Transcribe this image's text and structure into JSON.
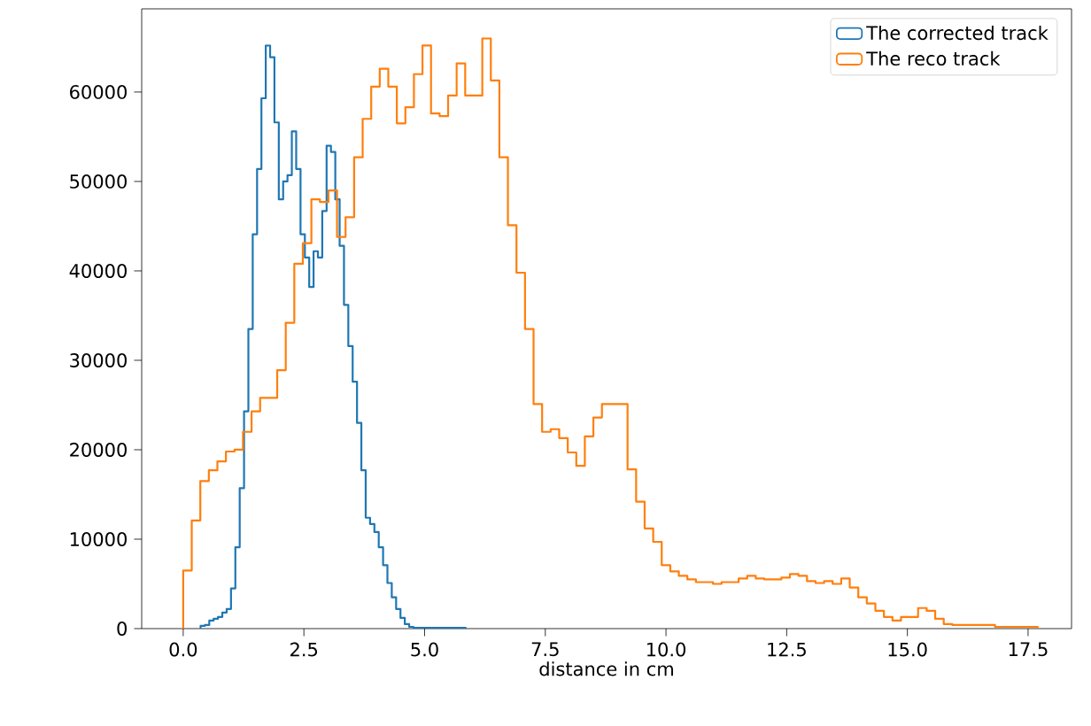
{
  "chart_data": {
    "type": "step",
    "xlabel": "distance in cm",
    "legend": "top right",
    "xlim": [
      -0.86,
      18.4
    ],
    "ylim": [
      0,
      69300
    ],
    "xticks": [
      {
        "value": 0,
        "label": "0.0"
      },
      {
        "value": 2.5,
        "label": "2.5"
      },
      {
        "value": 5,
        "label": "5.0"
      },
      {
        "value": 7.5,
        "label": "7.5"
      },
      {
        "value": 10,
        "label": "10.0"
      },
      {
        "value": 12.5,
        "label": "12.5"
      },
      {
        "value": 15,
        "label": "15.0"
      },
      {
        "value": 17.5,
        "label": "17.5"
      }
    ],
    "yticks": [
      0,
      10000,
      20000,
      30000,
      40000,
      50000,
      60000
    ],
    "series": [
      {
        "name": "The corrected track",
        "color": "#1f77b4",
        "x": [
          0.36,
          0.36,
          0.45,
          0.54,
          0.63,
          0.72,
          0.81,
          0.9,
          0.99,
          1.08,
          1.17,
          1.26,
          1.35,
          1.44,
          1.53,
          1.62,
          1.71,
          1.8,
          1.89,
          1.98,
          2.07,
          2.16,
          2.25,
          2.34,
          2.43,
          2.52,
          2.61,
          2.7,
          2.79,
          2.88,
          2.97,
          3.06,
          3.15,
          3.24,
          3.33,
          3.42,
          3.51,
          3.6,
          3.69,
          3.78,
          3.87,
          3.96,
          4.05,
          4.14,
          4.23,
          4.32,
          4.41,
          4.5,
          4.59,
          4.68,
          4.77,
          4.86,
          4.95,
          5.04,
          5.13,
          5.22,
          5.31,
          5.4,
          5.49,
          5.58,
          5.67,
          5.76,
          5.85
        ],
        "values": [
          0,
          300,
          400,
          900,
          1100,
          1300,
          1800,
          2200,
          4500,
          9100,
          15700,
          24300,
          33500,
          44100,
          51400,
          59300,
          65200,
          63900,
          56600,
          48000,
          50000,
          50700,
          55600,
          51400,
          44100,
          41500,
          38200,
          42200,
          41500,
          46700,
          54000,
          53300,
          48000,
          42800,
          36200,
          31600,
          27600,
          23000,
          17700,
          12400,
          11700,
          10800,
          9100,
          7100,
          5100,
          3500,
          2200,
          1200,
          500,
          200,
          100,
          100,
          100,
          100,
          100,
          100,
          100,
          100,
          100,
          100,
          100,
          100,
          0
        ]
      },
      {
        "name": "The reco track",
        "color": "#ff7f0e",
        "x": [
          0,
          0,
          0.177,
          0.354,
          0.531,
          0.708,
          0.885,
          1.062,
          1.239,
          1.416,
          1.593,
          1.77,
          1.947,
          2.124,
          2.301,
          2.478,
          2.655,
          2.832,
          3.009,
          3.186,
          3.363,
          3.54,
          3.717,
          3.894,
          4.071,
          4.248,
          4.425,
          4.602,
          4.779,
          4.956,
          5.133,
          5.31,
          5.487,
          5.664,
          5.841,
          6.018,
          6.195,
          6.372,
          6.549,
          6.726,
          6.903,
          7.08,
          7.257,
          7.434,
          7.611,
          7.788,
          7.965,
          8.142,
          8.319,
          8.496,
          8.673,
          8.85,
          9.027,
          9.204,
          9.381,
          9.558,
          9.735,
          9.912,
          10.089,
          10.266,
          10.443,
          10.62,
          10.797,
          10.974,
          11.151,
          11.328,
          11.505,
          11.682,
          11.859,
          12.036,
          12.213,
          12.39,
          12.567,
          12.744,
          12.921,
          13.098,
          13.275,
          13.452,
          13.629,
          13.806,
          13.983,
          14.16,
          14.337,
          14.514,
          14.691,
          14.868,
          15.045,
          15.222,
          15.399,
          15.576,
          15.753,
          15.93,
          16.107,
          16.284,
          16.461,
          16.638,
          16.815,
          16.992,
          17.169,
          17.346,
          17.523,
          17.7
        ],
        "values": [
          0,
          6500,
          12100,
          16500,
          17700,
          18700,
          19800,
          20000,
          22000,
          24300,
          25800,
          25800,
          28900,
          34200,
          40800,
          43100,
          48000,
          47700,
          49000,
          43800,
          46000,
          52700,
          57000,
          60600,
          62600,
          60600,
          56500,
          58300,
          62000,
          65200,
          57600,
          57300,
          59600,
          63200,
          59600,
          59600,
          66000,
          61300,
          52700,
          45100,
          39800,
          33500,
          25100,
          22000,
          22300,
          21300,
          19700,
          18200,
          21500,
          23600,
          25100,
          25100,
          25100,
          17800,
          14200,
          11200,
          9700,
          7100,
          6400,
          5900,
          5500,
          5200,
          5200,
          5000,
          5200,
          5200,
          5600,
          5900,
          5600,
          5500,
          5500,
          5700,
          6100,
          5900,
          5300,
          5100,
          5300,
          5000,
          5600,
          4600,
          3500,
          2800,
          2000,
          1300,
          900,
          1300,
          1300,
          2300,
          2000,
          1100,
          500,
          400,
          400,
          400,
          400,
          400,
          200,
          200,
          200,
          200,
          200,
          0
        ]
      }
    ]
  }
}
